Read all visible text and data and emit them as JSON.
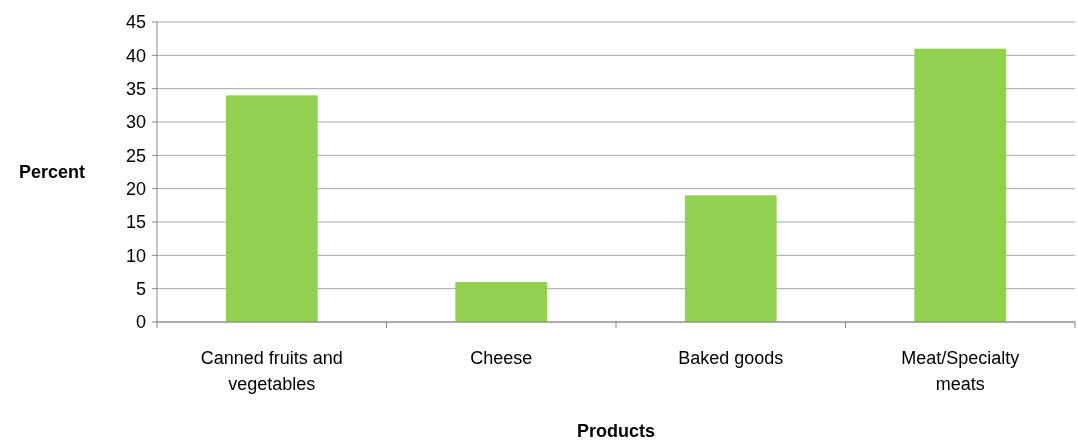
{
  "chart_data": {
    "type": "bar",
    "categories": [
      "Canned fruits and vegetables",
      "Cheese",
      "Baked goods",
      "Meat/Specialty meats"
    ],
    "values": [
      34,
      6,
      19,
      41
    ],
    "color": "#92d050",
    "ylim": [
      0,
      45
    ],
    "yticks": [
      0,
      5,
      10,
      15,
      20,
      25,
      30,
      35,
      40,
      45
    ],
    "grid": "y",
    "xlabel": "Products",
    "ylabel": "Percent"
  }
}
